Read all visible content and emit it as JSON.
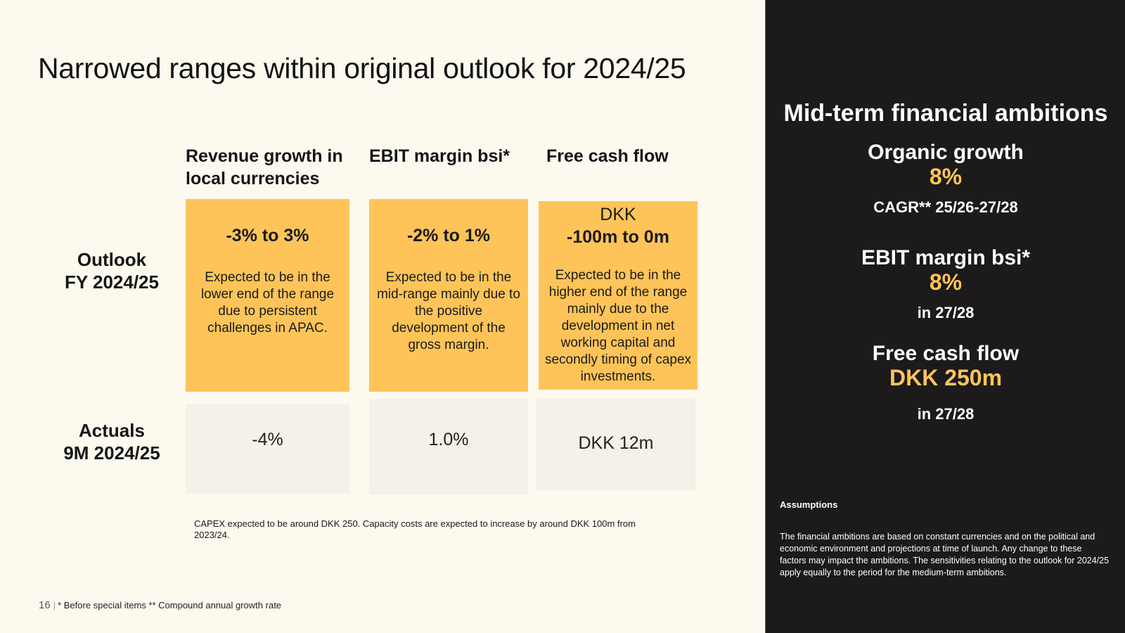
{
  "title": "Narrowed ranges within original outlook for 2024/25",
  "columns": [
    {
      "header": "Revenue growth in local currencies"
    },
    {
      "header": "EBIT margin bsi*"
    },
    {
      "header": "Free cash flow"
    }
  ],
  "rows": {
    "outlook": {
      "line1": "Outlook",
      "line2": "FY 2024/25"
    },
    "actuals": {
      "line1": "Actuals",
      "line2": "9M  2024/25"
    }
  },
  "outlook_boxes": [
    {
      "range": "-3% to 3%",
      "description": "Expected to be in the lower end of the range due to persistent challenges in APAC."
    },
    {
      "range": "-2% to 1%",
      "description": "Expected to be in the mid-range mainly due to the positive development of the gross margin."
    },
    {
      "range_prefix": "DKK",
      "range": "-100m to 0m",
      "description": "Expected to be in the higher end of the range mainly due to the development in net working capital and secondly timing of capex investments."
    }
  ],
  "actuals": [
    "-4%",
    "1.0%",
    "DKK 12m"
  ],
  "note": "CAPEX expected to be around DKK 250. Capacity costs are expected to increase by around DKK 100m from 2023/24.",
  "footer": {
    "page": "16",
    "text": "* Before special items ** Compound annual growth rate"
  },
  "sidebar": {
    "title": "Mid-term financial ambitions",
    "ambitions": [
      {
        "label": "Organic growth",
        "value": "8%",
        "sub": "CAGR** 25/26-27/28"
      },
      {
        "label": "EBIT margin bsi*",
        "value": "8%",
        "sub": "in 27/28"
      },
      {
        "label": "Free cash flow",
        "value": "DKK 250m",
        "sub": "in 27/28"
      }
    ],
    "assumptions_title": "Assumptions",
    "assumptions_text": "The financial ambitions are based on constant currencies and on the political and economic environment and projections at time of launch. Any change to these factors may impact the ambitions. The sensitivities relating to the outlook for 2024/25 apply equally to the period for the medium-term ambitions."
  },
  "colors": {
    "accent": "#fec459",
    "background": "#fcf9ef",
    "sidebar": "#1c1a1a",
    "actual_box": "#f4f1e8"
  }
}
